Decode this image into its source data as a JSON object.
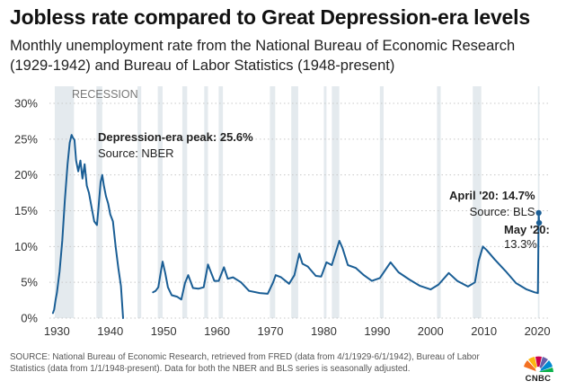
{
  "title": "Jobless rate compared to Great Depression-era levels",
  "subtitle": "Monthly unemployment rate from the National Bureau of Economic Research (1929-1942) and Bureau of Labor Statistics (1948-present)",
  "source_note": "SOURCE: National Bureau of Economic Research, retrieved from FRED (data from 4/1/1929-6/1/1942), Bureau of Labor Statistics (data from 1/1/1948-present). Data for both the NBER and BLS series is seasonally adjusted.",
  "logo_text": "CNBC",
  "colors": {
    "line": "#1a5e95",
    "recession": "#e4eaee",
    "text": "#222222",
    "grid": "#c8c8c8"
  },
  "chart_data": {
    "type": "line",
    "xlim": [
      1928.6,
      2022
    ],
    "ylim": [
      0,
      30
    ],
    "y_ticks": [
      0,
      5,
      10,
      15,
      20,
      25,
      30
    ],
    "y_tick_labels": [
      "0%",
      "5%",
      "10%",
      "15%",
      "20%",
      "25%",
      "30%"
    ],
    "x_ticks": [
      1930,
      1940,
      1950,
      1960,
      1970,
      1980,
      1990,
      2000,
      2010,
      2020
    ],
    "x_tick_labels": [
      "1930",
      "1940",
      "1950",
      "1960",
      "1970",
      "1980",
      "1990",
      "2000",
      "2010",
      "2020"
    ],
    "grid": "horizontal dotted",
    "recession_label": "RECESSION",
    "recessions": [
      [
        1929.6,
        1933.2
      ],
      [
        1937.4,
        1938.5
      ],
      [
        1945.1,
        1945.8
      ],
      [
        1948.9,
        1949.8
      ],
      [
        1953.5,
        1954.4
      ],
      [
        1957.6,
        1958.3
      ],
      [
        1960.3,
        1961.1
      ],
      [
        1969.9,
        1970.9
      ],
      [
        1973.9,
        1975.2
      ],
      [
        1980.0,
        1980.5
      ],
      [
        1981.5,
        1982.9
      ],
      [
        1990.5,
        1991.2
      ],
      [
        2001.2,
        2001.9
      ],
      [
        2007.9,
        2009.5
      ],
      [
        2020.1,
        2020.4
      ]
    ],
    "series": [
      {
        "segments": [
          [
            [
              1929.25,
              0.7
            ],
            [
              1929.5,
              1.2
            ],
            [
              1929.75,
              2.5
            ],
            [
              1930.0,
              3.5
            ],
            [
              1930.5,
              6.5
            ],
            [
              1931.0,
              10.8
            ],
            [
              1931.5,
              16.5
            ],
            [
              1932.0,
              21.5
            ],
            [
              1932.4,
              24.5
            ],
            [
              1932.75,
              25.6
            ],
            [
              1933.0,
              25.2
            ],
            [
              1933.3,
              24.9
            ],
            [
              1933.6,
              22.0
            ],
            [
              1934.0,
              20.5
            ],
            [
              1934.4,
              22.0
            ],
            [
              1934.8,
              19.5
            ],
            [
              1935.2,
              21.5
            ],
            [
              1935.6,
              18.5
            ],
            [
              1936.0,
              17.5
            ],
            [
              1936.5,
              15.5
            ],
            [
              1937.0,
              13.5
            ],
            [
              1937.5,
              13.0
            ],
            [
              1937.8,
              15.5
            ],
            [
              1938.2,
              19.0
            ],
            [
              1938.5,
              20.0
            ],
            [
              1938.8,
              18.5
            ],
            [
              1939.2,
              17.0
            ],
            [
              1939.6,
              16.0
            ],
            [
              1940.0,
              14.5
            ],
            [
              1940.5,
              13.5
            ],
            [
              1941.0,
              10.0
            ],
            [
              1941.5,
              7.0
            ],
            [
              1942.0,
              4.5
            ],
            [
              1942.4,
              0.0
            ]
          ],
          [
            [
              1948.0,
              3.6
            ],
            [
              1948.5,
              3.8
            ],
            [
              1949.0,
              4.3
            ],
            [
              1949.5,
              6.6
            ],
            [
              1949.8,
              7.9
            ],
            [
              1950.3,
              6.3
            ],
            [
              1950.8,
              4.3
            ],
            [
              1951.5,
              3.2
            ],
            [
              1952.5,
              3.0
            ],
            [
              1953.3,
              2.6
            ],
            [
              1954.0,
              4.9
            ],
            [
              1954.6,
              6.0
            ],
            [
              1955.5,
              4.2
            ],
            [
              1956.5,
              4.1
            ],
            [
              1957.5,
              4.3
            ],
            [
              1958.3,
              7.5
            ],
            [
              1958.8,
              6.5
            ],
            [
              1959.5,
              5.2
            ],
            [
              1960.3,
              5.2
            ],
            [
              1961.3,
              7.1
            ],
            [
              1962.0,
              5.5
            ],
            [
              1963.0,
              5.7
            ],
            [
              1964.5,
              5.0
            ],
            [
              1966.0,
              3.8
            ],
            [
              1968.0,
              3.5
            ],
            [
              1969.5,
              3.4
            ],
            [
              1970.5,
              5.0
            ],
            [
              1971.0,
              6.0
            ],
            [
              1972.0,
              5.7
            ],
            [
              1973.5,
              4.8
            ],
            [
              1974.5,
              6.0
            ],
            [
              1975.4,
              9.0
            ],
            [
              1976.0,
              7.6
            ],
            [
              1977.0,
              7.2
            ],
            [
              1978.5,
              5.9
            ],
            [
              1979.5,
              5.8
            ],
            [
              1980.5,
              7.8
            ],
            [
              1981.5,
              7.4
            ],
            [
              1982.9,
              10.8
            ],
            [
              1983.5,
              9.8
            ],
            [
              1984.5,
              7.4
            ],
            [
              1986.0,
              7.0
            ],
            [
              1987.5,
              6.0
            ],
            [
              1989.0,
              5.2
            ],
            [
              1990.5,
              5.6
            ],
            [
              1992.5,
              7.8
            ],
            [
              1994.0,
              6.4
            ],
            [
              1996.0,
              5.4
            ],
            [
              1998.0,
              4.5
            ],
            [
              2000.0,
              4.0
            ],
            [
              2001.5,
              4.7
            ],
            [
              2003.4,
              6.3
            ],
            [
              2005.0,
              5.2
            ],
            [
              2007.0,
              4.4
            ],
            [
              2008.3,
              5.0
            ],
            [
              2009.0,
              8.0
            ],
            [
              2009.8,
              10.0
            ],
            [
              2010.5,
              9.5
            ],
            [
              2012.0,
              8.2
            ],
            [
              2014.0,
              6.6
            ],
            [
              2016.0,
              4.9
            ],
            [
              2018.0,
              4.0
            ],
            [
              2019.5,
              3.6
            ],
            [
              2020.1,
              3.5
            ],
            [
              2020.25,
              14.7
            ],
            [
              2020.33,
              13.3
            ]
          ]
        ]
      }
    ],
    "annotations": [
      {
        "id": "depression",
        "label": "Depression-era peak: 25.6%",
        "sublabel": "Source: NBER",
        "x": 1932.75,
        "y": 25.6
      },
      {
        "id": "april",
        "label": "April '20: 14.7%",
        "sublabel": "Source: BLS",
        "x": 2020.25,
        "y": 14.7
      },
      {
        "id": "may",
        "label": "May '20:",
        "sublabel": "13.3%",
        "x": 2020.33,
        "y": 13.3
      }
    ]
  }
}
